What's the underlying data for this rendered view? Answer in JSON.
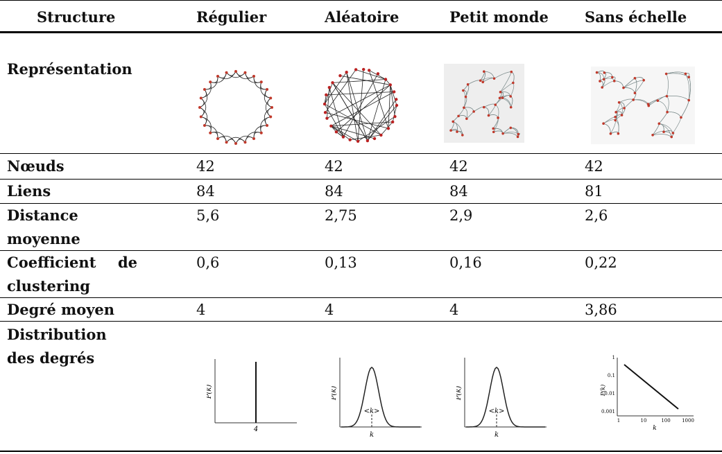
{
  "table": {
    "header": [
      "Structure",
      "Régulier",
      "Aléatoire",
      "Petit monde",
      "Sans échelle"
    ],
    "representation_label": "Représentation",
    "rows": [
      [
        "Nœuds",
        "42",
        "42",
        "42",
        "42"
      ],
      [
        "Liens",
        "84",
        "84",
        "84",
        "81"
      ],
      [
        "Distance moyenne",
        "5,6",
        "2,75",
        "2,9",
        "2,6"
      ],
      [
        "Coefficient de clustering",
        "0,6",
        "0,13",
        "0,16",
        "0,22"
      ],
      [
        "Degré moyen",
        "4",
        "4",
        "4",
        "3,86"
      ]
    ],
    "distribution_label": "Distribution des degrés",
    "plots": [
      {
        "y_label": "P(k)",
        "x_labels": [
          "4"
        ]
      },
      {
        "y_label": "P(k)",
        "x_labels": [
          "<k>",
          "k"
        ]
      },
      {
        "y_label": "P(k)",
        "x_labels": [
          "<k>",
          "k"
        ]
      },
      {
        "y_label": "P(k)",
        "x_labels": [
          "1",
          "10",
          "100",
          "1000",
          "k"
        ],
        "y_labels": [
          "1",
          "0.1",
          "0.01",
          "0.001"
        ]
      }
    ]
  }
}
